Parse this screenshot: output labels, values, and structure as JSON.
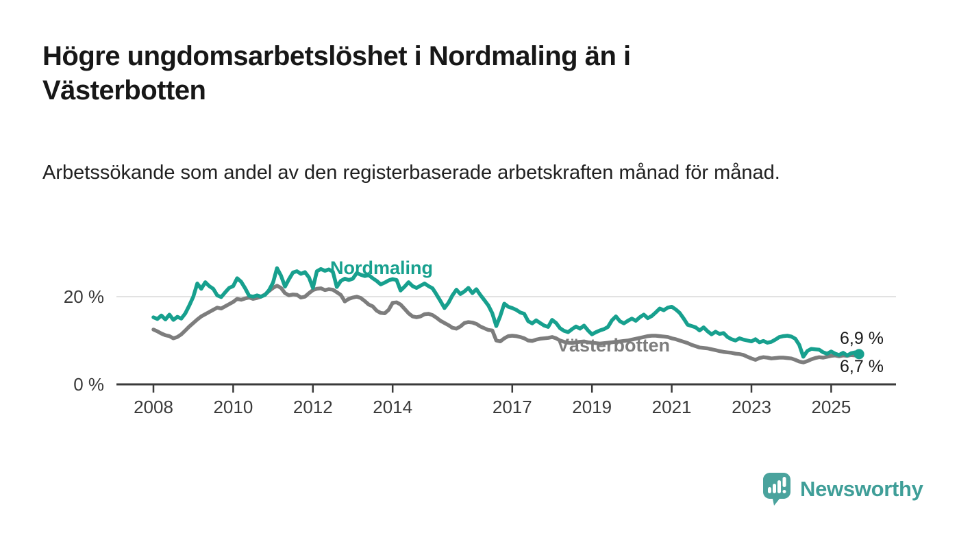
{
  "title": "Högre ungdomsarbetslöshet i Nordmaling än i Västerbotten",
  "subtitle": "Arbetssökande som andel av den registerbaserade arbetskraften månad för månad.",
  "branding": {
    "logo_text": "Newsworthy"
  },
  "colors": {
    "nordmaling": "#17a08e",
    "vasterbotten": "#7d7d7d",
    "axis": "#3a3a3a",
    "axis_text": "#3a3a3a",
    "gridline": "#d8d8d8",
    "value_label": "#1a1a1a",
    "title_text": "#171717",
    "logo_text": "#3f9e98",
    "logo_icon": "#4aa39d"
  },
  "chart_data": {
    "type": "line",
    "title": "Högre ungdomsarbetslöshet i Nordmaling än i Västerbotten",
    "subtitle": "Arbetssökande som andel av den registerbaserade arbetskraften månad för månad.",
    "unit": "%",
    "x_start": 2008.0,
    "x_step": 0.1,
    "x_ticks": [
      2008,
      2010,
      2012,
      2014,
      2017,
      2019,
      2021,
      2023,
      2025
    ],
    "x_tick_labels": [
      "2008",
      "2010",
      "2012",
      "2014",
      "2017",
      "2019",
      "2021",
      "2023",
      "2025"
    ],
    "y_ticks": [
      {
        "value": 0,
        "label": "0 %"
      },
      {
        "value": 20,
        "label": "20 %"
      }
    ],
    "ylim": [
      0,
      28
    ],
    "grid": "horizontal-only",
    "legend_position": "inline-labels",
    "series": [
      {
        "name": "Nordmaling",
        "color": "#17a08e",
        "end_label": "6,9 %",
        "end_value": 6.9,
        "values": [
          15.3,
          14.9,
          15.7,
          14.8,
          15.9,
          14.7,
          15.4,
          15.0,
          16.2,
          18.0,
          20.0,
          23.0,
          21.8,
          23.3,
          22.4,
          21.8,
          20.3,
          19.9,
          21.0,
          22.0,
          22.4,
          24.2,
          23.4,
          21.9,
          20.2,
          20.0,
          20.3,
          20.0,
          20.4,
          21.5,
          23.2,
          26.5,
          24.8,
          22.3,
          24.0,
          25.5,
          25.8,
          25.2,
          25.6,
          24.4,
          22.0,
          25.8,
          26.3,
          25.9,
          26.2,
          25.7,
          22.2,
          23.6,
          24.1,
          23.8,
          24.1,
          25.4,
          25.0,
          24.7,
          24.9,
          24.2,
          23.6,
          22.8,
          23.2,
          23.7,
          24.0,
          23.8,
          21.4,
          22.3,
          23.3,
          22.4,
          22.0,
          22.5,
          23.0,
          22.4,
          21.9,
          20.5,
          19.0,
          17.4,
          18.6,
          20.3,
          21.6,
          20.6,
          21.2,
          22.0,
          20.8,
          21.7,
          20.4,
          19.2,
          18.0,
          16.2,
          13.3,
          15.6,
          18.4,
          17.7,
          17.4,
          17.0,
          16.4,
          16.1,
          14.4,
          13.9,
          14.6,
          14.0,
          13.4,
          13.1,
          14.7,
          14.0,
          12.8,
          12.2,
          11.9,
          12.6,
          13.2,
          12.7,
          13.4,
          12.3,
          11.4,
          11.9,
          12.3,
          12.6,
          13.1,
          14.6,
          15.5,
          14.4,
          13.9,
          14.5,
          15.0,
          14.5,
          15.3,
          15.9,
          15.1,
          15.6,
          16.4,
          17.3,
          16.9,
          17.5,
          17.7,
          17.1,
          16.3,
          15.0,
          13.6,
          13.3,
          13.0,
          12.3,
          13.0,
          12.1,
          11.4,
          12.0,
          11.5,
          11.7,
          10.8,
          10.3,
          10.0,
          10.5,
          10.2,
          10.0,
          9.8,
          10.3,
          9.6,
          9.9,
          9.5,
          9.7,
          10.2,
          10.8,
          11.0,
          11.1,
          10.9,
          10.4,
          9.0,
          6.3,
          7.6,
          8.1,
          8.0,
          7.9,
          7.3,
          7.0,
          7.5,
          7.0,
          6.7,
          7.2,
          6.6,
          7.1,
          7.3,
          6.9
        ]
      },
      {
        "name": "Västerbotten",
        "color": "#7d7d7d",
        "end_label": "6,7 %",
        "end_value": 6.7,
        "values": [
          12.5,
          12.1,
          11.6,
          11.2,
          11.0,
          10.5,
          10.8,
          11.4,
          12.3,
          13.2,
          14.0,
          14.8,
          15.5,
          16.0,
          16.5,
          17.0,
          17.5,
          17.3,
          17.8,
          18.3,
          18.8,
          19.5,
          19.3,
          19.6,
          19.8,
          19.5,
          19.7,
          20.0,
          20.5,
          21.3,
          22.0,
          22.5,
          22.0,
          20.8,
          20.3,
          20.5,
          20.4,
          19.8,
          20.0,
          20.8,
          21.5,
          21.8,
          21.9,
          21.5,
          21.7,
          21.6,
          21.0,
          20.4,
          18.9,
          19.5,
          19.8,
          20.0,
          19.7,
          19.0,
          18.2,
          17.8,
          16.8,
          16.3,
          16.2,
          17.0,
          18.6,
          18.7,
          18.2,
          17.2,
          16.2,
          15.5,
          15.3,
          15.5,
          16.0,
          16.1,
          15.8,
          15.2,
          14.5,
          14.0,
          13.5,
          12.9,
          12.7,
          13.2,
          14.0,
          14.2,
          14.1,
          13.8,
          13.2,
          12.8,
          12.4,
          12.3,
          10.0,
          9.8,
          10.5,
          11.0,
          11.1,
          11.0,
          10.8,
          10.5,
          10.0,
          9.9,
          10.2,
          10.4,
          10.5,
          10.6,
          10.8,
          10.5,
          10.0,
          9.7,
          9.5,
          9.4,
          9.6,
          9.7,
          9.8,
          9.6,
          9.5,
          9.4,
          9.3,
          9.4,
          9.5,
          9.6,
          9.7,
          9.8,
          9.9,
          10.0,
          10.2,
          10.4,
          10.6,
          10.8,
          11.0,
          11.1,
          11.1,
          11.0,
          10.9,
          10.8,
          10.5,
          10.3,
          10.0,
          9.7,
          9.4,
          9.0,
          8.7,
          8.4,
          8.3,
          8.2,
          8.0,
          7.8,
          7.6,
          7.4,
          7.3,
          7.2,
          7.0,
          6.9,
          6.7,
          6.3,
          5.9,
          5.6,
          6.0,
          6.2,
          6.1,
          5.9,
          6.0,
          6.1,
          6.1,
          6.0,
          5.9,
          5.6,
          5.2,
          5.0,
          5.3,
          5.7,
          6.0,
          6.2,
          6.1,
          6.3,
          6.5,
          6.6,
          6.4,
          6.6,
          6.5,
          6.7,
          6.6,
          6.7
        ]
      }
    ]
  }
}
